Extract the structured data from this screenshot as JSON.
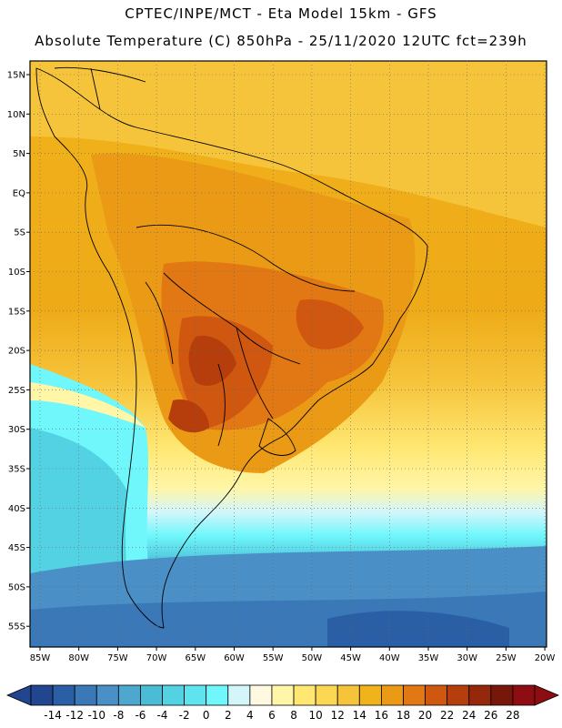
{
  "header": {
    "line1": "CPTEC/INPE/MCT -  Eta Model 15km - GFS",
    "line2": "Absolute Temperature (C) 850hPa - 25/11/2020 12UTC fct=239h"
  },
  "lat_labels": [
    "15N",
    "10N",
    "5N",
    "EQ",
    "5S",
    "10S",
    "15S",
    "20S",
    "25S",
    "30S",
    "35S",
    "40S",
    "45S",
    "50S",
    "55S"
  ],
  "lon_labels": [
    "85W",
    "80W",
    "75W",
    "70W",
    "65W",
    "60W",
    "55W",
    "50W",
    "45W",
    "40W",
    "35W",
    "30W",
    "25W",
    "20W"
  ],
  "colorbar": {
    "labels": [
      "-14",
      "-12",
      "-10",
      "-8",
      "-6",
      "-4",
      "-2",
      "0",
      "2",
      "4",
      "6",
      "8",
      "10",
      "12",
      "14",
      "16",
      "18",
      "20",
      "22",
      "24",
      "26",
      "28"
    ],
    "colors": [
      "#21468f",
      "#2a5fa6",
      "#3a78b8",
      "#4a8fc6",
      "#4ea7cf",
      "#4bbcd6",
      "#52d2e2",
      "#5fe3ef",
      "#6ff7fb",
      "#d3f6fb",
      "#fff9e2",
      "#fff6a8",
      "#ffe772",
      "#fcd754",
      "#f6c43b",
      "#f1b31c",
      "#eb9a16",
      "#e27813",
      "#cf5710",
      "#b63d0c",
      "#95270a",
      "#76170a",
      "#8d0d12"
    ],
    "below_color": "#21468f",
    "above_color": "#8d0d12"
  }
}
